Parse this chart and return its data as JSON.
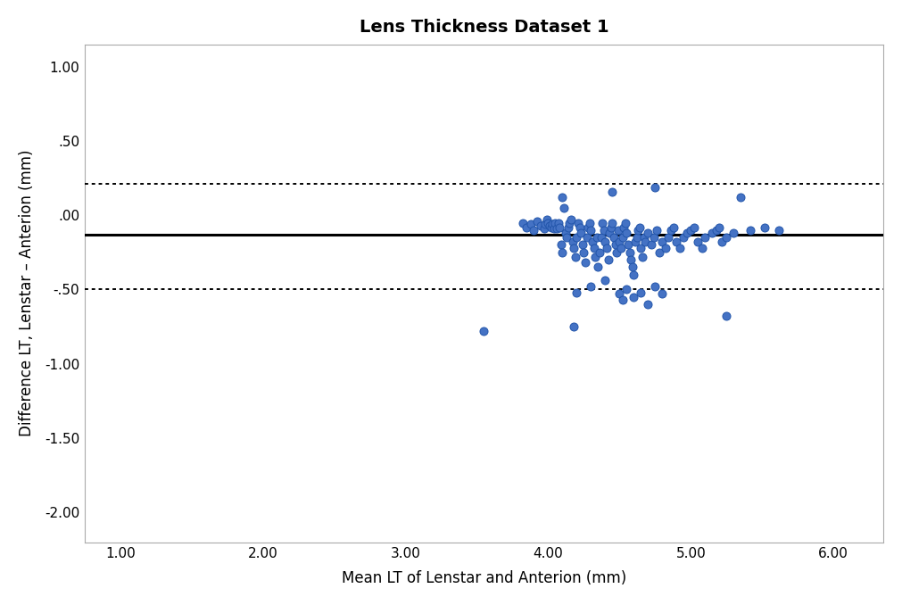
{
  "title": "Lens Thickness Dataset 1",
  "xlabel": "Mean LT of Lenstar and Anterion (mm)",
  "ylabel": "Difference LT, Lenstar – Anterion (mm)",
  "xlim": [
    0.75,
    6.35
  ],
  "ylim": [
    -2.2,
    1.15
  ],
  "xticks": [
    1.0,
    2.0,
    3.0,
    4.0,
    5.0,
    6.0
  ],
  "yticks": [
    -2.0,
    -1.5,
    -1.0,
    -0.5,
    0.0,
    0.5,
    1.0
  ],
  "ytick_labels": [
    "-2.00",
    "-1.50",
    "-1.00",
    "-.50",
    ".00",
    ".50",
    "1.00"
  ],
  "xtick_labels": [
    "1.00",
    "2.00",
    "3.00",
    "4.00",
    "5.00",
    "6.00"
  ],
  "mean_diff": -0.13,
  "upper_loa": 0.21,
  "lower_loa": -0.5,
  "marker_color": "#4472C4",
  "marker_edge_color": "#2255AA",
  "marker_size": 6.5,
  "line_color": "black",
  "background_color": "white",
  "spine_color": "#AAAAAA",
  "x_scatter": [
    3.82,
    3.85,
    3.88,
    3.9,
    3.92,
    3.95,
    3.97,
    3.98,
    3.99,
    4.0,
    4.01,
    4.02,
    4.03,
    4.04,
    4.05,
    4.06,
    4.07,
    4.08,
    4.09,
    4.1,
    4.11,
    4.12,
    4.13,
    4.14,
    4.15,
    4.16,
    4.17,
    4.18,
    4.19,
    4.2,
    4.21,
    4.22,
    4.23,
    4.24,
    4.25,
    4.26,
    4.27,
    4.28,
    4.29,
    4.3,
    4.31,
    4.32,
    4.33,
    4.34,
    4.35,
    4.36,
    4.37,
    4.38,
    4.39,
    4.4,
    4.41,
    4.42,
    4.43,
    4.44,
    4.45,
    4.46,
    4.47,
    4.48,
    4.49,
    4.5,
    4.51,
    4.52,
    4.53,
    4.54,
    4.55,
    4.56,
    4.57,
    4.58,
    4.59,
    4.6,
    4.61,
    4.62,
    4.63,
    4.64,
    4.65,
    4.66,
    4.67,
    4.68,
    4.7,
    4.72,
    4.74,
    4.76,
    4.78,
    4.8,
    4.82,
    4.84,
    4.86,
    4.88,
    4.9,
    4.92,
    4.95,
    4.97,
    5.0,
    5.02,
    5.05,
    5.08,
    5.1,
    5.15,
    5.18,
    5.2,
    5.22,
    5.25,
    5.3,
    5.42,
    5.52,
    5.62,
    4.1,
    4.45,
    4.75,
    5.35,
    4.2,
    4.3,
    4.4,
    4.5,
    4.52,
    4.55,
    4.6,
    4.65,
    4.7,
    4.75,
    4.8,
    5.25,
    3.55,
    4.18
  ],
  "y_scatter": [
    -0.05,
    -0.08,
    -0.06,
    -0.1,
    -0.04,
    -0.07,
    -0.09,
    -0.06,
    -0.03,
    -0.05,
    -0.07,
    -0.08,
    -0.06,
    -0.09,
    -0.05,
    -0.09,
    -0.05,
    -0.08,
    -0.2,
    -0.25,
    0.05,
    -0.12,
    -0.15,
    -0.08,
    -0.05,
    -0.03,
    -0.18,
    -0.22,
    -0.28,
    -0.15,
    -0.05,
    -0.08,
    -0.12,
    -0.2,
    -0.25,
    -0.32,
    -0.15,
    -0.08,
    -0.05,
    -0.1,
    -0.18,
    -0.22,
    -0.28,
    -0.15,
    -0.35,
    -0.25,
    -0.15,
    -0.05,
    -0.1,
    -0.18,
    -0.22,
    -0.3,
    -0.12,
    -0.08,
    -0.05,
    -0.15,
    -0.2,
    -0.25,
    -0.1,
    -0.18,
    -0.22,
    -0.15,
    -0.08,
    -0.05,
    -0.12,
    -0.2,
    -0.25,
    -0.3,
    -0.35,
    -0.4,
    -0.18,
    -0.15,
    -0.1,
    -0.08,
    -0.22,
    -0.28,
    -0.15,
    -0.18,
    -0.12,
    -0.2,
    -0.15,
    -0.1,
    -0.25,
    -0.18,
    -0.22,
    -0.15,
    -0.1,
    -0.08,
    -0.18,
    -0.22,
    -0.15,
    -0.12,
    -0.1,
    -0.08,
    -0.18,
    -0.22,
    -0.15,
    -0.12,
    -0.1,
    -0.08,
    -0.18,
    -0.15,
    -0.12,
    -0.1,
    -0.08,
    -0.1,
    0.12,
    0.16,
    0.19,
    0.12,
    -0.52,
    -0.48,
    -0.44,
    -0.53,
    -0.57,
    -0.5,
    -0.55,
    -0.52,
    -0.6,
    -0.48,
    -0.53,
    -0.68,
    -0.78,
    -0.75
  ]
}
